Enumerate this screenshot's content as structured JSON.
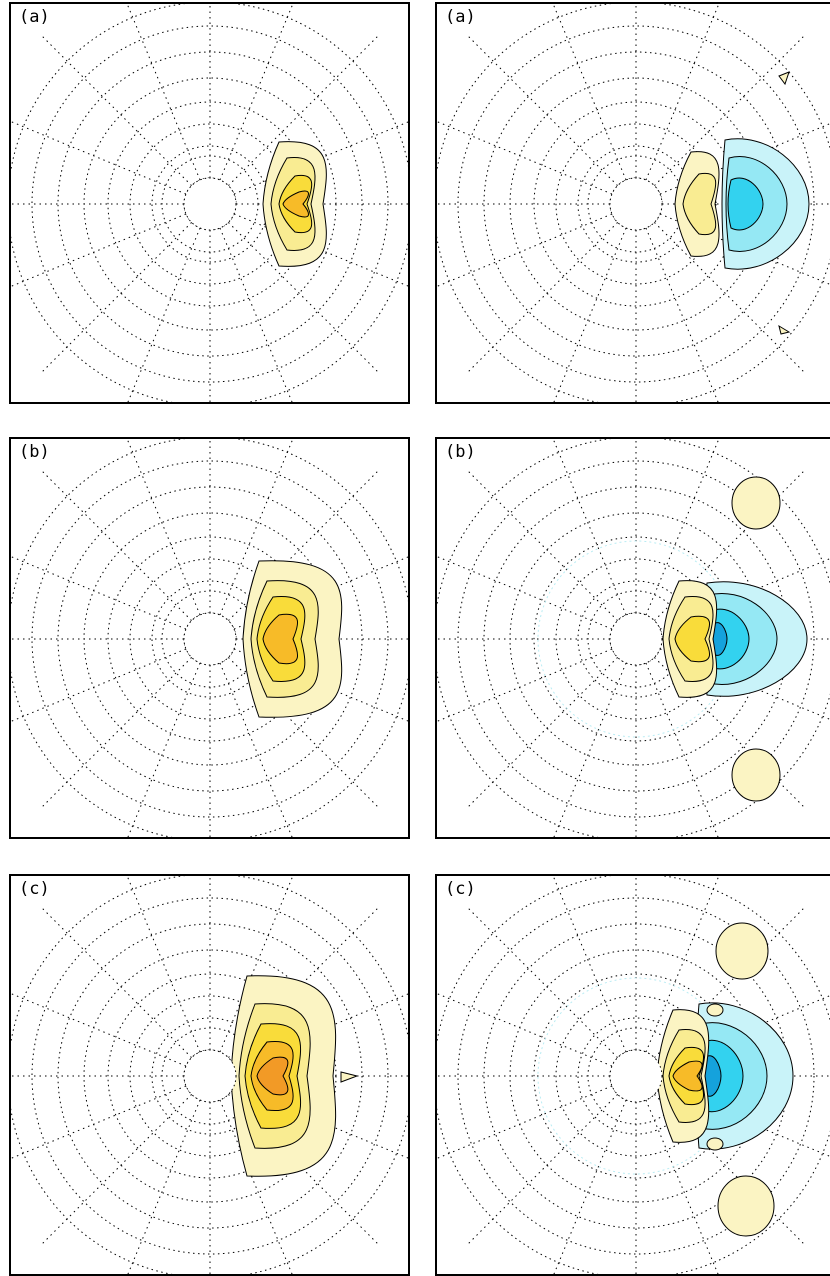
{
  "panels": [
    {
      "label": "(a)",
      "side": "left",
      "row": "a",
      "has_arrow": true
    },
    {
      "label": "(a)",
      "side": "right",
      "row": "a",
      "has_arrow": false
    },
    {
      "label": "(b)",
      "side": "left",
      "row": "b",
      "has_arrow": true
    },
    {
      "label": "(b)",
      "side": "right",
      "row": "b",
      "has_arrow": false
    },
    {
      "label": "(c)",
      "side": "left",
      "row": "c",
      "has_arrow": true
    },
    {
      "label": "(c)",
      "side": "right",
      "row": "c",
      "has_arrow": false
    }
  ],
  "colors": {
    "frame": "#000000",
    "grid": "#000000",
    "arrow": "#8c8c8c",
    "positive_levels": [
      "#fbf4c3",
      "#f9ec92",
      "#f9dc3a",
      "#f7bb28",
      "#f29a26"
    ],
    "negative_levels": [
      "#c9f3f9",
      "#95e8f4",
      "#33d2ef",
      "#15a2dc"
    ]
  }
}
